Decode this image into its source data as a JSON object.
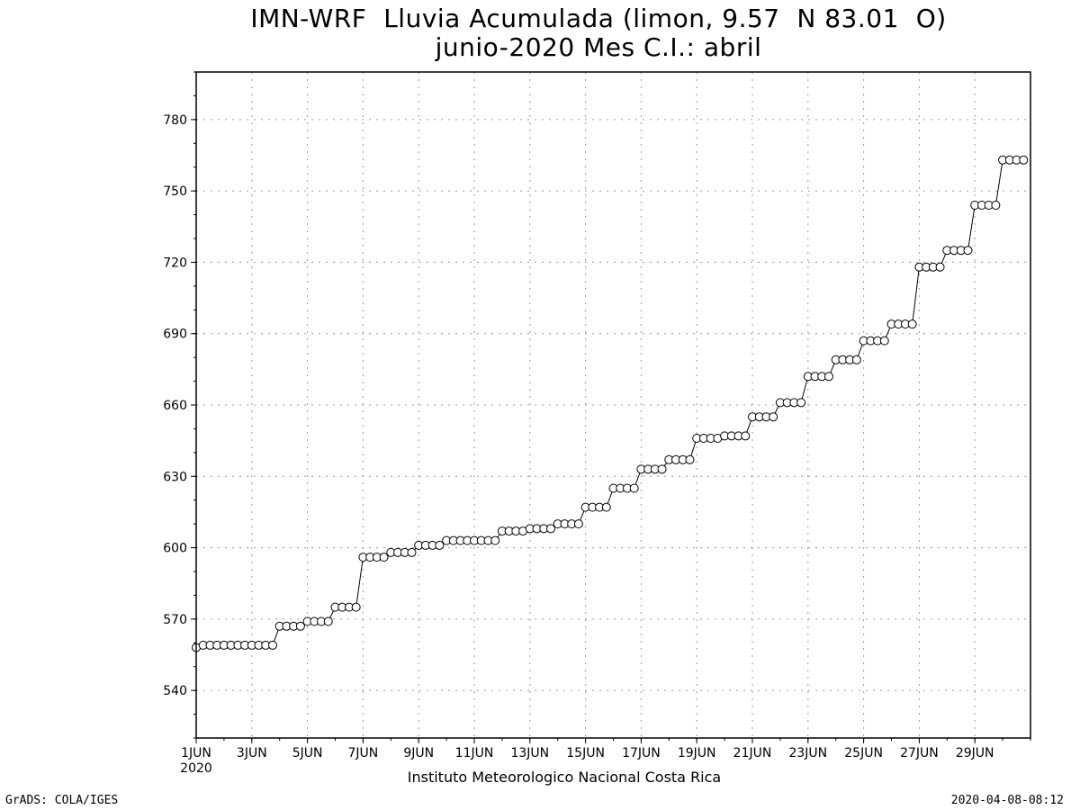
{
  "chart_data": {
    "type": "line",
    "title_line1": "IMN-WRF  Lluvia Acumulada (limon, 9.57  N 83.01  O)",
    "title_line2": "junio-2020 Mes C.I.: abril",
    "xlabel": "",
    "ylabel": "",
    "y_ticks": [
      540,
      570,
      600,
      630,
      660,
      690,
      720,
      750,
      780
    ],
    "ylim": [
      520,
      800
    ],
    "x_ticks": [
      {
        "day": 1,
        "label": "1JUN",
        "sublabel": "2020"
      },
      {
        "day": 3,
        "label": "3JUN"
      },
      {
        "day": 5,
        "label": "5JUN"
      },
      {
        "day": 7,
        "label": "7JUN"
      },
      {
        "day": 9,
        "label": "9JUN"
      },
      {
        "day": 11,
        "label": "11JUN"
      },
      {
        "day": 13,
        "label": "13JUN"
      },
      {
        "day": 15,
        "label": "15JUN"
      },
      {
        "day": 17,
        "label": "17JUN"
      },
      {
        "day": 19,
        "label": "19JUN"
      },
      {
        "day": 21,
        "label": "21JUN"
      },
      {
        "day": 23,
        "label": "23JUN"
      },
      {
        "day": 25,
        "label": "25JUN"
      },
      {
        "day": 27,
        "label": "27JUN"
      },
      {
        "day": 29,
        "label": "29JUN"
      }
    ],
    "xlim": [
      "2020-06-01 00:00",
      "2020-07-01 00:00"
    ],
    "grid": true,
    "marker": "open-circle",
    "line_color": "#000000",
    "series": [
      {
        "step_hours": 6,
        "start": "2020-06-01 00:00",
        "values": [
          558,
          559,
          559,
          559,
          559,
          559,
          559,
          559,
          559,
          559,
          559,
          559,
          567,
          567,
          567,
          567,
          569,
          569,
          569,
          569,
          575,
          575,
          575,
          575,
          596,
          596,
          596,
          596,
          598,
          598,
          598,
          598,
          601,
          601,
          601,
          601,
          603,
          603,
          603,
          603,
          603,
          603,
          603,
          603,
          607,
          607,
          607,
          607,
          608,
          608,
          608,
          608,
          610,
          610,
          610,
          610,
          617,
          617,
          617,
          617,
          625,
          625,
          625,
          625,
          633,
          633,
          633,
          633,
          637,
          637,
          637,
          637,
          646,
          646,
          646,
          646,
          647,
          647,
          647,
          647,
          655,
          655,
          655,
          655,
          661,
          661,
          661,
          661,
          672,
          672,
          672,
          672,
          679,
          679,
          679,
          679,
          687,
          687,
          687,
          687,
          694,
          694,
          694,
          694,
          718,
          718,
          718,
          718,
          725,
          725,
          725,
          725,
          744,
          744,
          744,
          744,
          763,
          763,
          763,
          763
        ]
      }
    ]
  },
  "credit": "Instituto Meteorologico Nacional Costa Rica",
  "footer_left": "GrADS: COLA/IGES",
  "footer_right": "2020-04-08-08:12"
}
